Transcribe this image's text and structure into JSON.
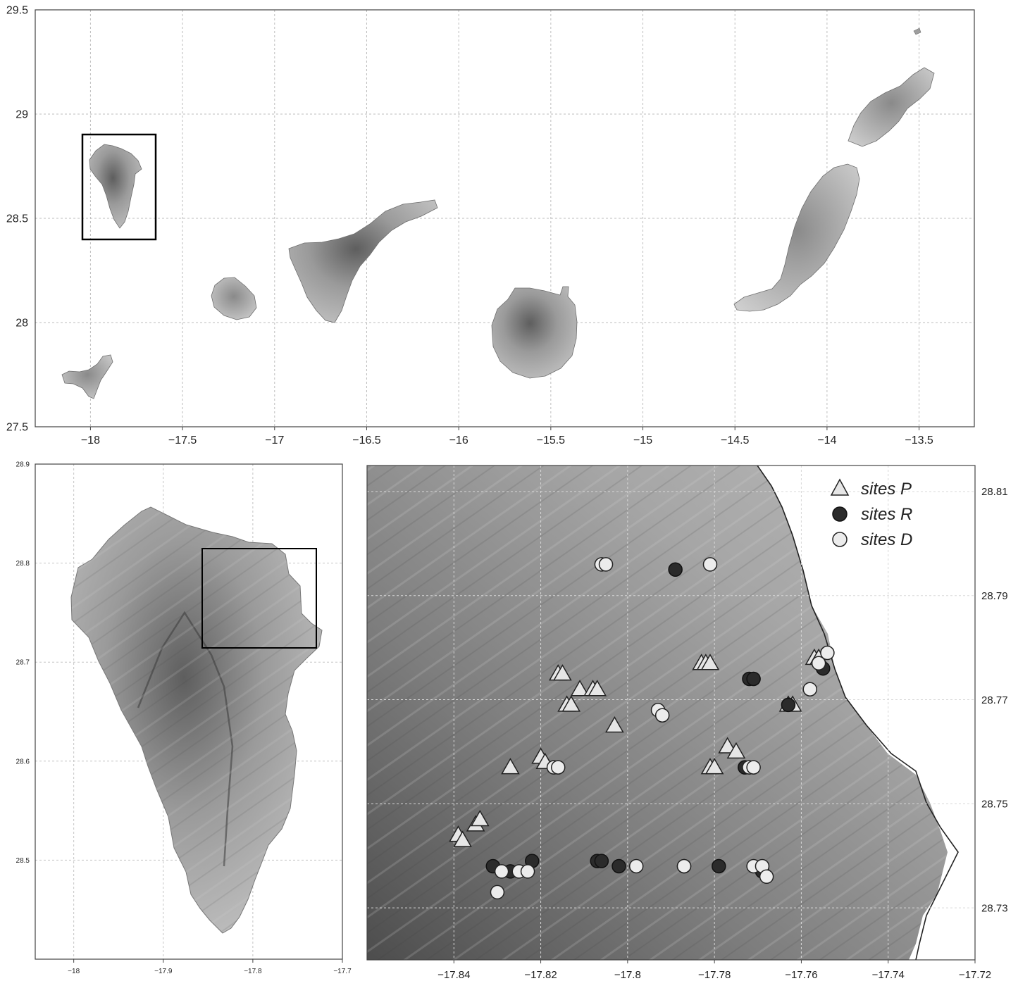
{
  "panels": {
    "overview": {
      "x_ticks": [
        "−18",
        "−17.5",
        "−17",
        "−16.5",
        "−16",
        "−15.5",
        "−15",
        "−14.5",
        "−14",
        "−13.5"
      ],
      "x_tick_values": [
        -18,
        -17.5,
        -17,
        -16.5,
        -16,
        -15.5,
        -15,
        -14.5,
        -14,
        -13.5
      ],
      "y_ticks": [
        "29.5",
        "29",
        "28.5",
        "28",
        "27.5"
      ],
      "y_tick_values": [
        29.5,
        29,
        28.5,
        28,
        27.5
      ],
      "xlim": [
        -18.3,
        -13.2
      ],
      "ylim": [
        27.5,
        29.5
      ],
      "inset_box": {
        "lon": [
          -18.05,
          -17.65
        ],
        "lat": [
          28.4,
          28.9
        ]
      },
      "islands": [
        "La Palma",
        "El Hierro",
        "La Gomera",
        "Tenerife",
        "Gran Canaria",
        "Fuerteventura",
        "Lanzarote"
      ]
    },
    "la_palma": {
      "x_ticks": [
        "−18",
        "−17.9",
        "−17.8",
        "−17.7"
      ],
      "x_tick_values": [
        -18,
        -17.9,
        -17.8,
        -17.7
      ],
      "y_ticks": [
        "28.9",
        "28.8",
        "28.7",
        "28.6",
        "28.5"
      ],
      "y_tick_values": [
        28.9,
        28.8,
        28.7,
        28.6,
        28.5
      ],
      "xlim": [
        -18.043,
        -17.7
      ],
      "ylim": [
        28.4,
        28.9
      ],
      "inset_box": {
        "lon": [
          -17.85,
          -17.73
        ],
        "lat": [
          28.727,
          28.82
        ]
      }
    },
    "detail": {
      "x_ticks": [
        "−17.84",
        "−17.82",
        "−17.8",
        "−17.78",
        "−17.76",
        "−17.74",
        "−17.72"
      ],
      "x_tick_values": [
        -17.84,
        -17.82,
        -17.8,
        -17.78,
        -17.76,
        -17.74,
        -17.72
      ],
      "y_ticks": [
        "28.81",
        "28.79",
        "28.77",
        "28.75",
        "28.73"
      ],
      "y_tick_values": [
        28.81,
        28.79,
        28.77,
        28.75,
        28.73
      ],
      "xlim": [
        -17.86,
        -17.72
      ],
      "ylim": [
        28.72,
        28.815
      ],
      "legend": {
        "p": "sites P",
        "r": "sites R",
        "d": "sites D"
      }
    }
  },
  "colors": {
    "site_p": "#e6e6e6",
    "site_r": "#2b2b2b",
    "site_d": "#ececec",
    "terrain": "#a9a9a9",
    "grid": "#bdbdbd"
  },
  "chart_data": {
    "type": "scatter",
    "series": [
      {
        "name": "sites P",
        "marker": "triangle",
        "points": [
          [
            -17.839,
            28.744
          ],
          [
            -17.838,
            28.743
          ],
          [
            -17.835,
            28.746
          ],
          [
            -17.834,
            28.747
          ],
          [
            -17.827,
            28.757
          ],
          [
            -17.82,
            28.759
          ],
          [
            -17.819,
            28.758
          ],
          [
            -17.816,
            28.775
          ],
          [
            -17.815,
            28.775
          ],
          [
            -17.814,
            28.769
          ],
          [
            -17.813,
            28.769
          ],
          [
            -17.811,
            28.772
          ],
          [
            -17.808,
            28.772
          ],
          [
            -17.807,
            28.772
          ],
          [
            -17.803,
            28.765
          ],
          [
            -17.783,
            28.777
          ],
          [
            -17.782,
            28.777
          ],
          [
            -17.781,
            28.757
          ],
          [
            -17.78,
            28.757
          ],
          [
            -17.777,
            28.761
          ],
          [
            -17.775,
            28.76
          ],
          [
            -17.763,
            28.769
          ],
          [
            -17.762,
            28.769
          ],
          [
            -17.757,
            28.778
          ],
          [
            -17.756,
            28.778
          ],
          [
            -17.781,
            28.777
          ]
        ]
      },
      {
        "name": "sites R",
        "marker": "circle",
        "points": [
          [
            -17.831,
            28.738
          ],
          [
            -17.827,
            28.737
          ],
          [
            -17.822,
            28.739
          ],
          [
            -17.807,
            28.739
          ],
          [
            -17.806,
            28.739
          ],
          [
            -17.802,
            28.738
          ],
          [
            -17.789,
            28.795
          ],
          [
            -17.787,
            28.738
          ],
          [
            -17.779,
            28.738
          ],
          [
            -17.772,
            28.774
          ],
          [
            -17.771,
            28.774
          ],
          [
            -17.773,
            28.757
          ],
          [
            -17.769,
            28.737
          ],
          [
            -17.763,
            28.769
          ],
          [
            -17.755,
            28.776
          ]
        ]
      },
      {
        "name": "sites D",
        "marker": "circle",
        "points": [
          [
            -17.829,
            28.737
          ],
          [
            -17.83,
            28.733
          ],
          [
            -17.825,
            28.737
          ],
          [
            -17.823,
            28.737
          ],
          [
            -17.817,
            28.757
          ],
          [
            -17.816,
            28.757
          ],
          [
            -17.806,
            28.796
          ],
          [
            -17.805,
            28.796
          ],
          [
            -17.798,
            28.738
          ],
          [
            -17.793,
            28.768
          ],
          [
            -17.792,
            28.767
          ],
          [
            -17.787,
            28.738
          ],
          [
            -17.781,
            28.796
          ],
          [
            -17.772,
            28.757
          ],
          [
            -17.771,
            28.738
          ],
          [
            -17.769,
            28.738
          ],
          [
            -17.768,
            28.736
          ],
          [
            -17.758,
            28.772
          ],
          [
            -17.756,
            28.777
          ],
          [
            -17.754,
            28.779
          ],
          [
            -17.771,
            28.757
          ]
        ]
      }
    ]
  }
}
